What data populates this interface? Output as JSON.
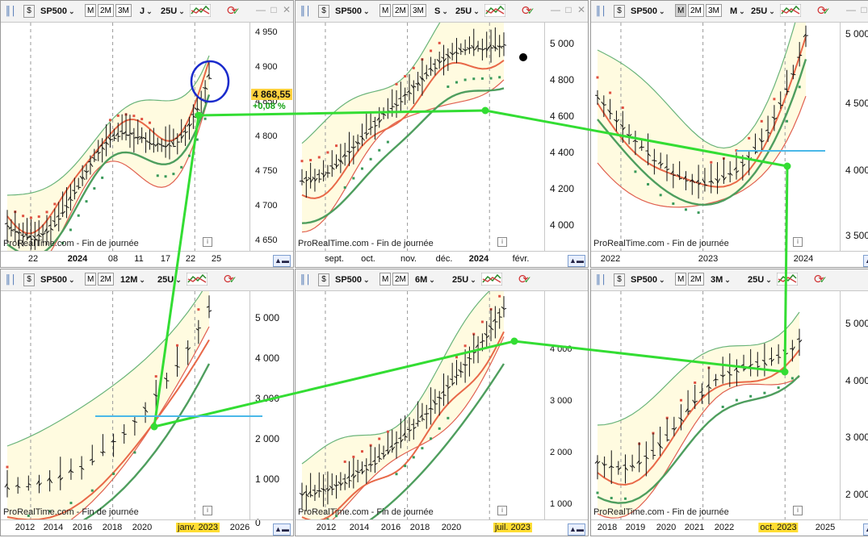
{
  "ticker": "SP500",
  "watermark": "ProRealTime.com - Fin de journée",
  "period_buttons": [
    "M",
    "2M",
    "3M"
  ],
  "colors": {
    "highlight": "#ffdd33",
    "annotation_line": "#33dd33",
    "circle": "#1a2bcc"
  },
  "icons": {
    "chart_type": "bar-chart-icon",
    "indicators": "indicators-icon",
    "refresh": "refresh-icon",
    "minimize": "minimize-icon",
    "maximize": "maximize-icon",
    "close": "close-icon",
    "info": "info-icon",
    "scroll": "scroll-button-icon"
  },
  "panels": [
    {
      "period": "J",
      "units": "25U",
      "active_button": null,
      "y_labels": [
        "4 950",
        "4 900",
        "4 850",
        "4 800",
        "4 750",
        "4 700",
        "4 650"
      ],
      "last_price": "4 868,55",
      "change_pct": "+0,08 %",
      "x_labels": [
        {
          "t": "22"
        },
        {
          "t": "2024",
          "b": true
        },
        {
          "t": "08"
        },
        {
          "t": "11"
        },
        {
          "t": "17"
        },
        {
          "t": "22"
        },
        {
          "t": "25"
        }
      ]
    },
    {
      "period": "S",
      "units": "25U",
      "active_button": null,
      "y_labels": [
        "5 000",
        "4 800",
        "4 600",
        "4 400",
        "4 200",
        "4 000"
      ],
      "x_labels": [
        {
          "t": "sept."
        },
        {
          "t": "oct."
        },
        {
          "t": "nov."
        },
        {
          "t": "déc."
        },
        {
          "t": "2024",
          "b": true
        },
        {
          "t": "févr."
        }
      ]
    },
    {
      "period": "M",
      "units": "25U",
      "active_button": "M",
      "y_labels": [
        "5 000",
        "4 500",
        "4 000",
        "3 500"
      ],
      "x_labels": [
        {
          "t": "2022"
        },
        {
          "t": "2023"
        },
        {
          "t": "2024"
        }
      ]
    },
    {
      "period": "12M",
      "units": "25U",
      "active_button": null,
      "y_labels": [
        "5 000",
        "4 000",
        "3 000",
        "2 000",
        "1 000",
        "0"
      ],
      "x_labels": [
        {
          "t": "2012"
        },
        {
          "t": "2014"
        },
        {
          "t": "2016"
        },
        {
          "t": "2018"
        },
        {
          "t": "2020"
        },
        {
          "t": "janv. 2023",
          "hl": true
        },
        {
          "t": "2026"
        }
      ]
    },
    {
      "period": "6M",
      "units": "25U",
      "active_button": null,
      "y_labels": [
        "4 000",
        "3 000",
        "2 000",
        "1 000"
      ],
      "x_labels": [
        {
          "t": "2012"
        },
        {
          "t": "2014"
        },
        {
          "t": "2016"
        },
        {
          "t": "2018"
        },
        {
          "t": "2020"
        },
        {
          "t": "juil. 2023",
          "hl": true
        }
      ]
    },
    {
      "period": "3M",
      "units": "25U",
      "active_button": null,
      "y_labels": [
        "5 000",
        "4 000",
        "3 000",
        "2 000"
      ],
      "x_labels": [
        {
          "t": "2018"
        },
        {
          "t": "2019"
        },
        {
          "t": "2020"
        },
        {
          "t": "2021"
        },
        {
          "t": "2022"
        },
        {
          "t": "oct. 2023",
          "hl": true
        },
        {
          "t": "2025"
        }
      ]
    }
  ]
}
